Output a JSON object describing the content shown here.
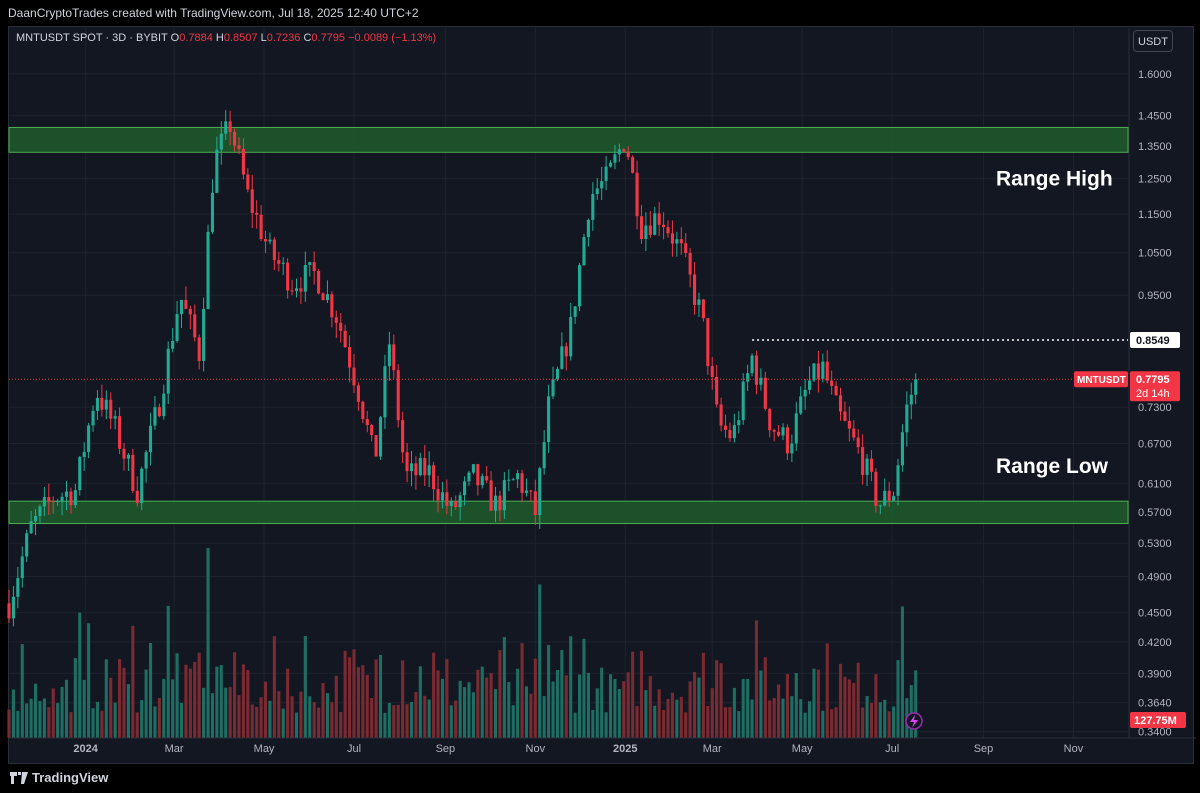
{
  "header": {
    "attribution": "DaanCryptoTrades created with TradingView.com, Jul 18, 2025 12:40 UTC+2"
  },
  "legend": {
    "symbol": "MNTUSDT SPOT · 3D · BYBIT",
    "o_label": "O",
    "o_value": "0.7884",
    "h_label": "H",
    "h_value": "0.8507",
    "l_label": "L",
    "l_value": "0.7236",
    "c_label": "C",
    "c_value": "0.7795",
    "change": "−0.0089 (−1.13%)"
  },
  "currency_button": "USDT",
  "footer": {
    "brand": "TradingView",
    "logo_icon": "tradingview-logo-icon"
  },
  "colors": {
    "up": "#22ab94",
    "down": "#f23645",
    "up_volume": "#1d6e63",
    "down_volume": "#7c2a31",
    "zone_fill": "#1e5c2a",
    "zone_border": "#4caf50",
    "background": "#131722"
  },
  "chart_data": {
    "type": "candlestick",
    "symbol": "MNTUSDT",
    "timeframe": "3D",
    "x_tick_labels": [
      "2024",
      "Mar",
      "May",
      "Jul",
      "Sep",
      "Nov",
      "2025",
      "Mar",
      "May",
      "Jul",
      "Sep",
      "Nov"
    ],
    "x_tick_dates": [
      "2024-01-01",
      "2024-03-01",
      "2024-05-01",
      "2024-07-01",
      "2024-09-01",
      "2024-11-01",
      "2025-01-01",
      "2025-03-01",
      "2025-05-01",
      "2025-07-01",
      "2025-09-01",
      "2025-11-01"
    ],
    "x_range": [
      "2023-11-10",
      "2025-12-08"
    ],
    "y_scale": "log",
    "y_range": [
      0.335,
      1.7
    ],
    "y_tick_labels": [
      "1.6000",
      "1.4500",
      "1.3500",
      "1.2500",
      "1.1500",
      "1.0500",
      "0.9500",
      "0.7300",
      "0.6700",
      "0.6100",
      "0.5700",
      "0.5300",
      "0.4900",
      "0.4500",
      "0.4200",
      "0.3900",
      "0.3640",
      "0.3400"
    ],
    "y_ticks": [
      1.6,
      1.45,
      1.35,
      1.25,
      1.15,
      1.05,
      0.95,
      0.73,
      0.67,
      0.61,
      0.57,
      0.53,
      0.49,
      0.45,
      0.42,
      0.39,
      0.364,
      0.34
    ],
    "price_path": [
      [
        "2023-11-10",
        0.46
      ],
      [
        "2023-11-25",
        0.55
      ],
      [
        "2023-12-10",
        0.59
      ],
      [
        "2023-12-25",
        0.6
      ],
      [
        "2024-01-08",
        0.76
      ],
      [
        "2024-01-20",
        0.7
      ],
      [
        "2024-02-05",
        0.6
      ],
      [
        "2024-02-20",
        0.74
      ],
      [
        "2024-03-05",
        0.95
      ],
      [
        "2024-03-18",
        0.83
      ],
      [
        "2024-03-28",
        1.3
      ],
      [
        "2024-04-08",
        1.42
      ],
      [
        "2024-04-20",
        1.2
      ],
      [
        "2024-05-05",
        1.05
      ],
      [
        "2024-05-20",
        0.98
      ],
      [
        "2024-06-05",
        1.0
      ],
      [
        "2024-06-20",
        0.9
      ],
      [
        "2024-07-05",
        0.75
      ],
      [
        "2024-07-15",
        0.64
      ],
      [
        "2024-07-25",
        0.85
      ],
      [
        "2024-08-05",
        0.62
      ],
      [
        "2024-08-20",
        0.63
      ],
      [
        "2024-09-05",
        0.57
      ],
      [
        "2024-09-20",
        0.62
      ],
      [
        "2024-10-05",
        0.58
      ],
      [
        "2024-10-20",
        0.62
      ],
      [
        "2024-11-01",
        0.57
      ],
      [
        "2024-11-10",
        0.73
      ],
      [
        "2024-11-25",
        0.88
      ],
      [
        "2024-12-08",
        1.2
      ],
      [
        "2024-12-20",
        1.25
      ],
      [
        "2025-01-01",
        1.38
      ],
      [
        "2025-01-12",
        1.12
      ],
      [
        "2025-01-25",
        1.15
      ],
      [
        "2025-02-08",
        1.05
      ],
      [
        "2025-02-22",
        0.9
      ],
      [
        "2025-03-05",
        0.7
      ],
      [
        "2025-03-15",
        0.68
      ],
      [
        "2025-03-28",
        0.82
      ],
      [
        "2025-04-10",
        0.7
      ],
      [
        "2025-04-22",
        0.67
      ],
      [
        "2025-05-05",
        0.77
      ],
      [
        "2025-05-15",
        0.8
      ],
      [
        "2025-05-25",
        0.72
      ],
      [
        "2025-06-10",
        0.65
      ],
      [
        "2025-06-22",
        0.58
      ],
      [
        "2025-07-02",
        0.6
      ],
      [
        "2025-07-10",
        0.72
      ],
      [
        "2025-07-17",
        0.7795
      ]
    ],
    "range_high_zone": [
      1.33,
      1.41
    ],
    "range_low_zone": [
      0.555,
      0.585
    ],
    "range_high_label": "Range High",
    "range_low_label": "Range Low",
    "resistance_level": {
      "value": 0.8549,
      "label": "0.8549",
      "from": "2025-03-28"
    },
    "last_price": {
      "symbol_label": "MNTUSDT",
      "value": 0.7795,
      "label": "0.7795",
      "countdown": "2d 14h"
    },
    "volume_label": "127.75M"
  }
}
